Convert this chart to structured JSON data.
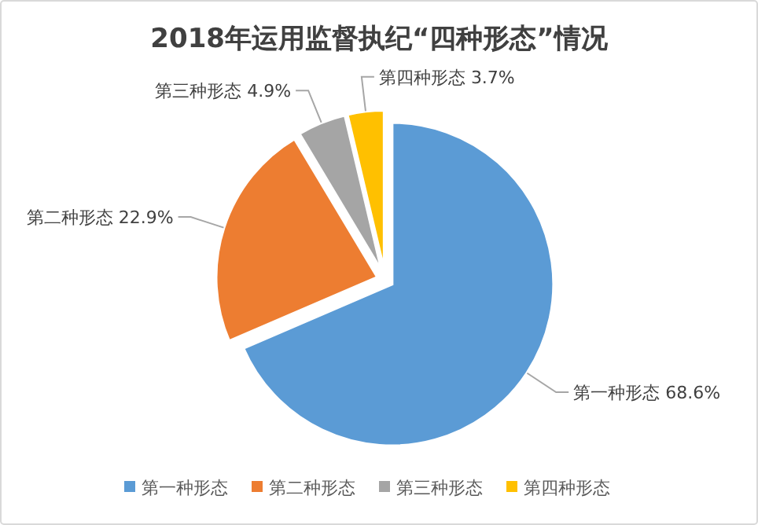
{
  "chart_data": {
    "type": "pie",
    "title": "2018年运用监督执纪“四种形态”情况",
    "categories": [
      "第一种形态",
      "第二种形态",
      "第三种形态",
      "第四种形态"
    ],
    "values": [
      68.6,
      22.9,
      4.9,
      3.7
    ],
    "value_labels": [
      "68.6%",
      "22.9%",
      "4.9%",
      "3.7%"
    ],
    "colors": [
      "#5b9bd5",
      "#ed7d31",
      "#a5a5a5",
      "#ffc000"
    ],
    "legend": "bottom"
  }
}
